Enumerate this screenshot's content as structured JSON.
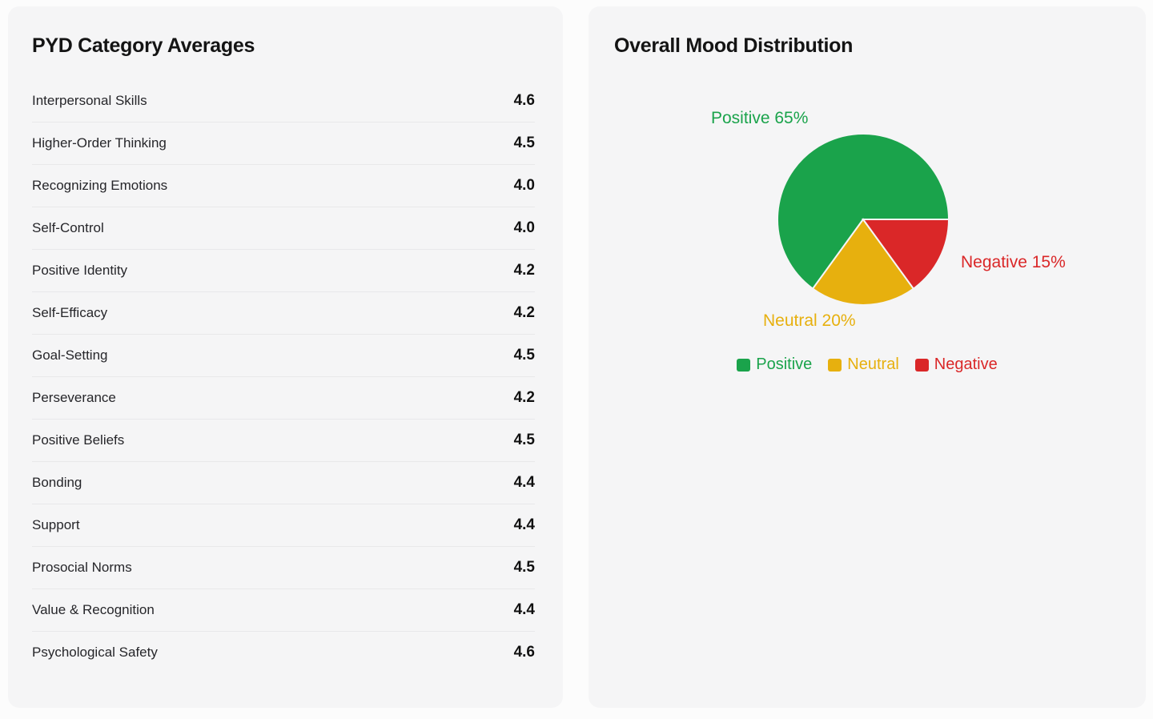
{
  "left_card": {
    "title": "PYD Category Averages",
    "rows": [
      {
        "label": "Interpersonal Skills",
        "value": "4.6"
      },
      {
        "label": "Higher-Order Thinking",
        "value": "4.5"
      },
      {
        "label": "Recognizing Emotions",
        "value": "4.0"
      },
      {
        "label": "Self-Control",
        "value": "4.0"
      },
      {
        "label": "Positive Identity",
        "value": "4.2"
      },
      {
        "label": "Self-Efficacy",
        "value": "4.2"
      },
      {
        "label": "Goal-Setting",
        "value": "4.5"
      },
      {
        "label": "Perseverance",
        "value": "4.2"
      },
      {
        "label": "Positive Beliefs",
        "value": "4.5"
      },
      {
        "label": "Bonding",
        "value": "4.4"
      },
      {
        "label": "Support",
        "value": "4.4"
      },
      {
        "label": "Prosocial Norms",
        "value": "4.5"
      },
      {
        "label": "Value & Recognition",
        "value": "4.4"
      },
      {
        "label": "Psychological Safety",
        "value": "4.6"
      }
    ]
  },
  "right_card": {
    "title": "Overall Mood Distribution"
  },
  "chart_data": {
    "type": "pie",
    "title": "Overall Mood Distribution",
    "slices": [
      {
        "label": "Positive",
        "value": 65,
        "color": "#1aa34b",
        "callout": "Positive 65%"
      },
      {
        "label": "Neutral",
        "value": 20,
        "color": "#e7b00e",
        "callout": "Neutral 20%"
      },
      {
        "label": "Negative",
        "value": 15,
        "color": "#da2728",
        "callout": "Negative 15%"
      }
    ],
    "start_angle_deg": 0,
    "direction": "counterclockwise",
    "slice_border_color": "#f5f5f6",
    "legend_position": "bottom",
    "labels_outside": true
  },
  "colors": {
    "page_background": "#fcfcfc",
    "card_background": "#f5f5f6",
    "row_divider": "#e8e8ea",
    "title_text": "#141414"
  }
}
